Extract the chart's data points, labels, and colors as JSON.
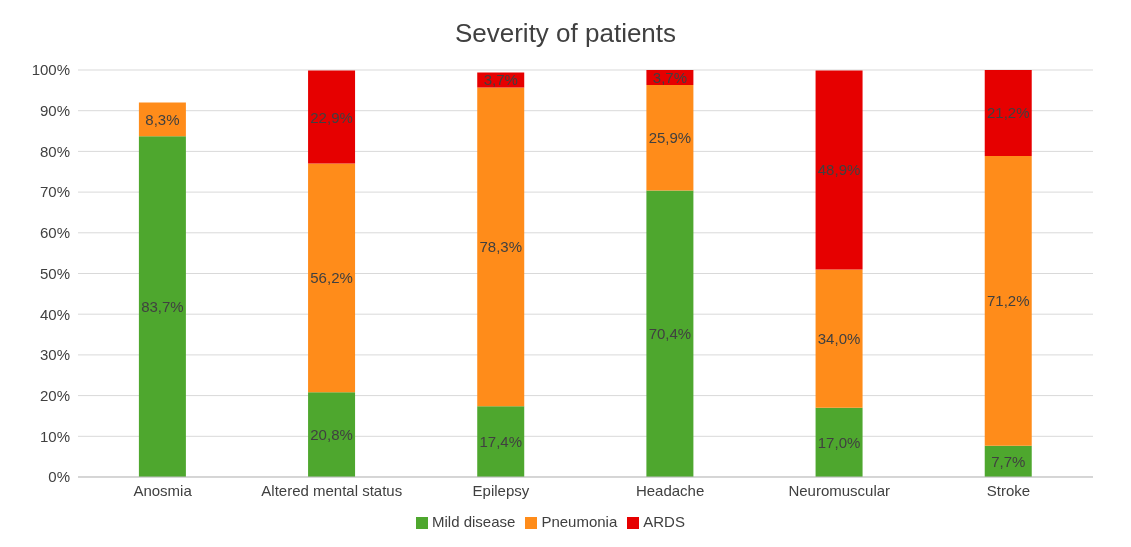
{
  "chart_data": {
    "type": "bar",
    "title": "Severity of patients",
    "stacked": true,
    "categories": [
      "Anosmia",
      "Altered mental status",
      "Epilepsy",
      "Headache",
      "Neuromuscular",
      "Stroke"
    ],
    "series": [
      {
        "name": "Mild disease",
        "color": "#4ea72e",
        "values": [
          83.7,
          20.8,
          17.4,
          70.4,
          17.0,
          7.7
        ],
        "value_labels": [
          "83,7%",
          "20,8%",
          "17,4%",
          "70,4%",
          "17,0%",
          "7,7%"
        ]
      },
      {
        "name": "Pneumonia",
        "color": "#ff8c1a",
        "values": [
          8.3,
          56.2,
          78.3,
          25.9,
          34.0,
          71.2
        ],
        "value_labels": [
          "8,3%",
          "56,2%",
          "78,3%",
          "25,9%",
          "34,0%",
          "71,2%"
        ]
      },
      {
        "name": "ARDS",
        "color": "#e60000",
        "values": [
          null,
          22.9,
          3.7,
          3.7,
          48.9,
          21.2
        ],
        "value_labels": [
          null,
          "22,9%",
          "3,7%",
          "3,7%",
          "48,9%",
          "21,2%"
        ]
      }
    ],
    "ylim": [
      0,
      100
    ],
    "yticks": [
      {
        "value": 0,
        "label": "0%"
      },
      {
        "value": 10,
        "label": "10%"
      },
      {
        "value": 20,
        "label": "20%"
      },
      {
        "value": 30,
        "label": "30%"
      },
      {
        "value": 40,
        "label": "40%"
      },
      {
        "value": 50,
        "label": "50%"
      },
      {
        "value": 60,
        "label": "60%"
      },
      {
        "value": 70,
        "label": "70%"
      },
      {
        "value": 80,
        "label": "80%"
      },
      {
        "value": 90,
        "label": "90%"
      },
      {
        "value": 100,
        "label": "100%"
      }
    ],
    "grid": "y",
    "legend": "bottom"
  }
}
